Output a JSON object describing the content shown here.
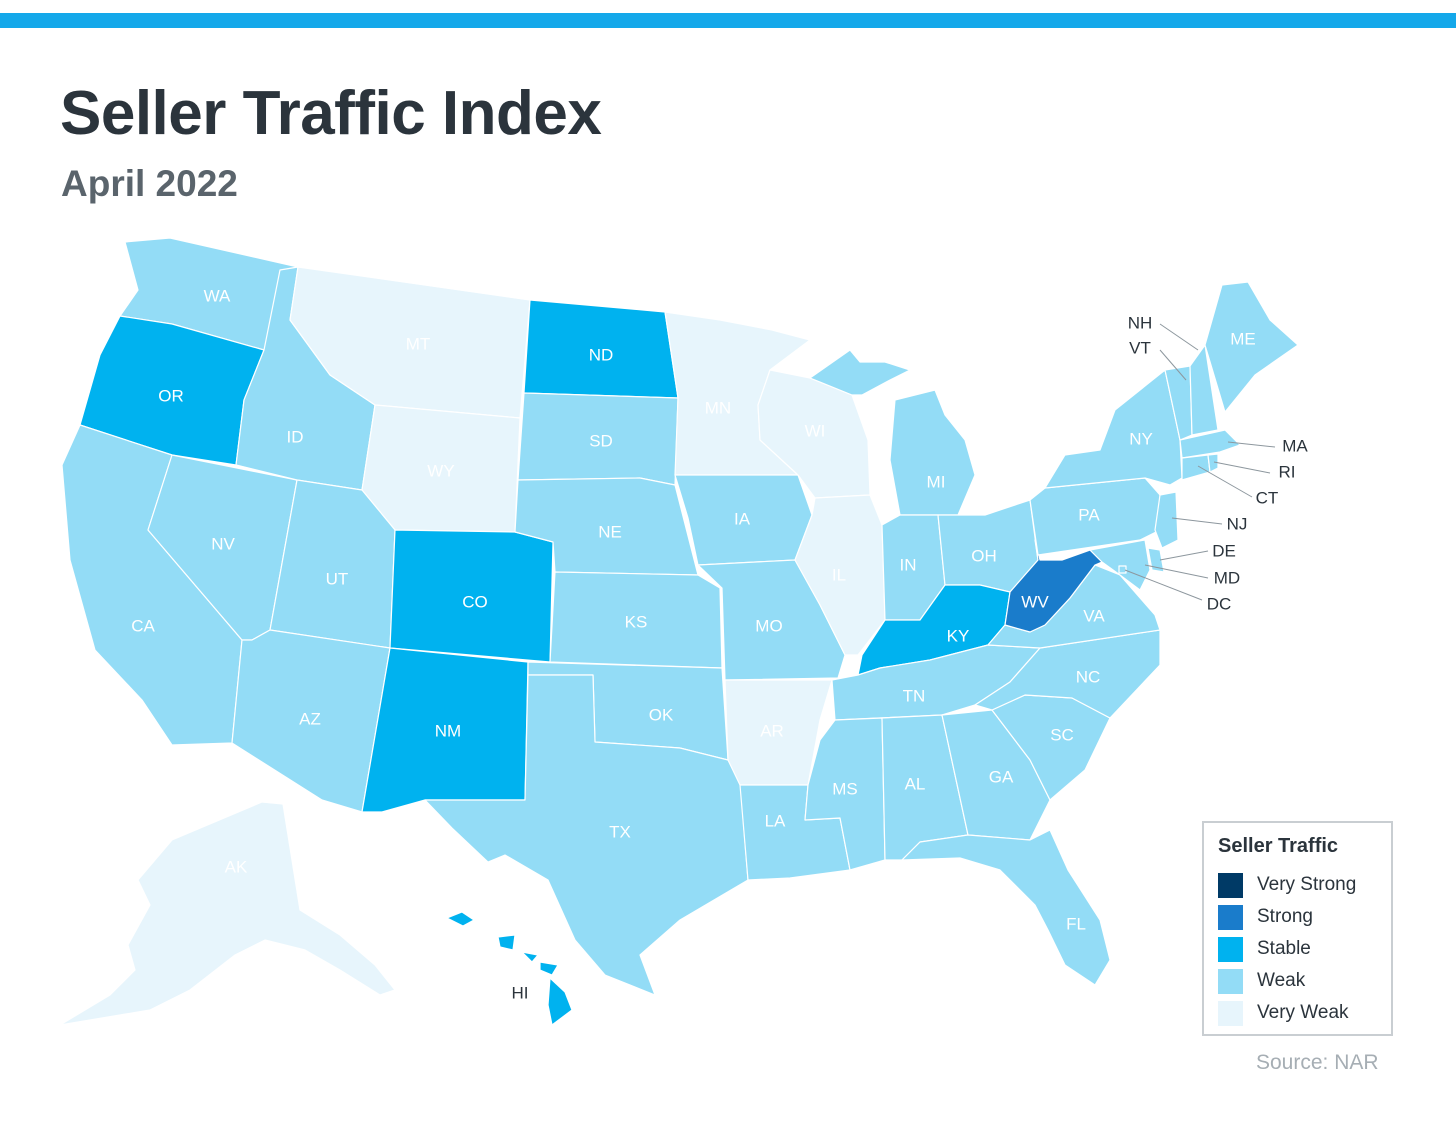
{
  "header": {
    "title": "Seller Traffic Index",
    "subtitle": "April 2022"
  },
  "colors": {
    "accent_bar": "#14a8ea",
    "very_strong": "#003a66",
    "strong": "#1a7ccb",
    "stable": "#00b2ef",
    "weak": "#93dcf6",
    "very_weak": "#e7f5fc",
    "border": "#ffffff"
  },
  "legend": {
    "title": "Seller Traffic",
    "items": [
      {
        "label": "Very Strong",
        "level": "very_strong"
      },
      {
        "label": "Strong",
        "level": "strong"
      },
      {
        "label": "Stable",
        "level": "stable"
      },
      {
        "label": "Weak",
        "level": "weak"
      },
      {
        "label": "Very Weak",
        "level": "very_weak"
      }
    ]
  },
  "states": [
    {
      "abbr": "WA",
      "level": "weak"
    },
    {
      "abbr": "OR",
      "level": "stable"
    },
    {
      "abbr": "CA",
      "level": "weak"
    },
    {
      "abbr": "NV",
      "level": "weak"
    },
    {
      "abbr": "ID",
      "level": "weak"
    },
    {
      "abbr": "MT",
      "level": "very_weak"
    },
    {
      "abbr": "WY",
      "level": "very_weak"
    },
    {
      "abbr": "UT",
      "level": "weak"
    },
    {
      "abbr": "AZ",
      "level": "weak"
    },
    {
      "abbr": "CO",
      "level": "stable"
    },
    {
      "abbr": "NM",
      "level": "stable"
    },
    {
      "abbr": "ND",
      "level": "stable"
    },
    {
      "abbr": "SD",
      "level": "weak"
    },
    {
      "abbr": "NE",
      "level": "weak"
    },
    {
      "abbr": "KS",
      "level": "weak"
    },
    {
      "abbr": "OK",
      "level": "weak"
    },
    {
      "abbr": "TX",
      "level": "weak"
    },
    {
      "abbr": "MN",
      "level": "very_weak"
    },
    {
      "abbr": "IA",
      "level": "weak"
    },
    {
      "abbr": "MO",
      "level": "weak"
    },
    {
      "abbr": "AR",
      "level": "very_weak"
    },
    {
      "abbr": "LA",
      "level": "weak"
    },
    {
      "abbr": "WI",
      "level": "very_weak"
    },
    {
      "abbr": "IL",
      "level": "very_weak"
    },
    {
      "abbr": "MI",
      "level": "weak"
    },
    {
      "abbr": "IN",
      "level": "weak"
    },
    {
      "abbr": "OH",
      "level": "weak"
    },
    {
      "abbr": "KY",
      "level": "stable"
    },
    {
      "abbr": "TN",
      "level": "weak"
    },
    {
      "abbr": "MS",
      "level": "weak"
    },
    {
      "abbr": "AL",
      "level": "weak"
    },
    {
      "abbr": "GA",
      "level": "weak"
    },
    {
      "abbr": "FL",
      "level": "weak"
    },
    {
      "abbr": "SC",
      "level": "weak"
    },
    {
      "abbr": "NC",
      "level": "weak"
    },
    {
      "abbr": "VA",
      "level": "weak"
    },
    {
      "abbr": "WV",
      "level": "strong"
    },
    {
      "abbr": "PA",
      "level": "weak"
    },
    {
      "abbr": "NY",
      "level": "weak"
    },
    {
      "abbr": "VT",
      "level": "weak"
    },
    {
      "abbr": "NH",
      "level": "weak"
    },
    {
      "abbr": "ME",
      "level": "weak"
    },
    {
      "abbr": "MA",
      "level": "weak"
    },
    {
      "abbr": "RI",
      "level": "weak"
    },
    {
      "abbr": "CT",
      "level": "weak"
    },
    {
      "abbr": "NJ",
      "level": "weak"
    },
    {
      "abbr": "DE",
      "level": "weak"
    },
    {
      "abbr": "MD",
      "level": "weak"
    },
    {
      "abbr": "DC",
      "level": "weak"
    },
    {
      "abbr": "AK",
      "level": "very_weak"
    },
    {
      "abbr": "HI",
      "level": "stable"
    }
  ],
  "source": "Source:  NAR"
}
